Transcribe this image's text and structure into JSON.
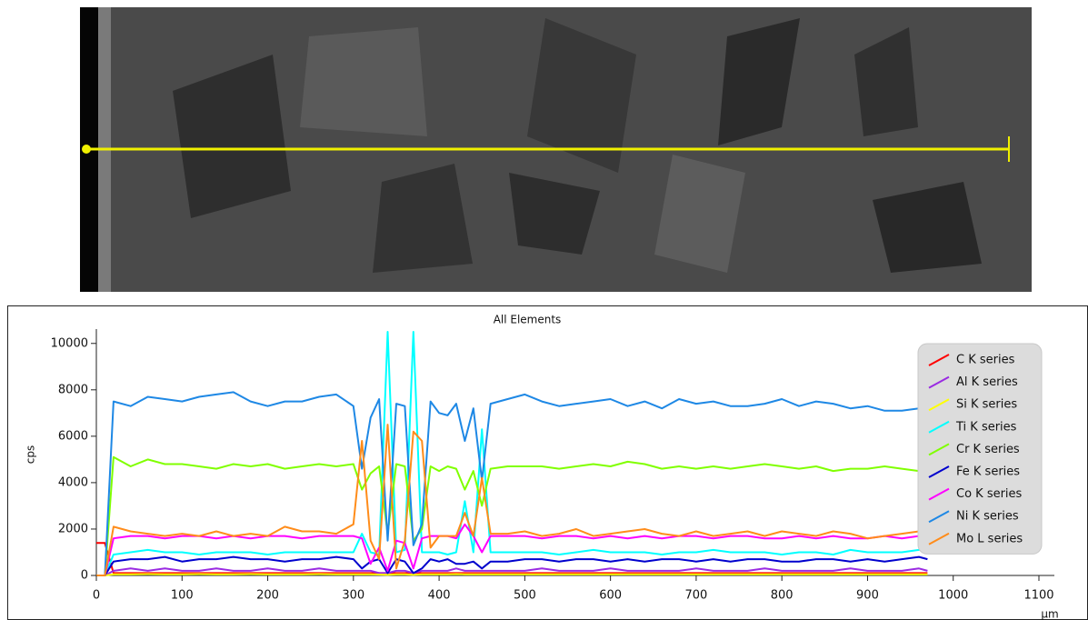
{
  "chart_data": {
    "type": "line",
    "title": "All Elements",
    "x_label": "µm",
    "y_label": "cps",
    "x": [
      0,
      10,
      20,
      40,
      60,
      80,
      100,
      120,
      140,
      160,
      180,
      200,
      220,
      240,
      260,
      280,
      300,
      310,
      320,
      330,
      340,
      350,
      360,
      370,
      380,
      390,
      400,
      410,
      420,
      430,
      440,
      450,
      460,
      480,
      500,
      520,
      540,
      560,
      580,
      600,
      620,
      640,
      660,
      680,
      700,
      720,
      740,
      760,
      780,
      800,
      820,
      840,
      860,
      880,
      900,
      920,
      940,
      960,
      970
    ],
    "xlim": [
      0,
      1100
    ],
    "xticks": [
      0,
      100,
      200,
      300,
      400,
      500,
      600,
      700,
      800,
      900,
      1000,
      1100
    ],
    "ylim": [
      0,
      10500
    ],
    "yticks": [
      0,
      2000,
      4000,
      6000,
      8000,
      10000
    ],
    "grid": false,
    "legend": "upper right",
    "series": [
      {
        "name": "C K series",
        "color": "#ff0000",
        "values": [
          1400,
          1400,
          100,
          100,
          100,
          100,
          100,
          100,
          100,
          100,
          100,
          100,
          100,
          100,
          100,
          100,
          100,
          100,
          100,
          100,
          100,
          100,
          100,
          100,
          100,
          100,
          100,
          100,
          100,
          100,
          100,
          100,
          100,
          100,
          100,
          100,
          100,
          100,
          100,
          100,
          100,
          100,
          100,
          100,
          100,
          100,
          100,
          100,
          100,
          100,
          100,
          100,
          100,
          100,
          100,
          100,
          100,
          100,
          100
        ]
      },
      {
        "name": "Al K series",
        "color": "#9a2be2",
        "values": [
          0,
          0,
          200,
          300,
          200,
          300,
          200,
          200,
          300,
          200,
          200,
          300,
          200,
          200,
          300,
          200,
          200,
          200,
          200,
          100,
          100,
          200,
          200,
          100,
          200,
          200,
          200,
          200,
          300,
          200,
          200,
          200,
          200,
          200,
          200,
          300,
          200,
          200,
          200,
          300,
          200,
          200,
          200,
          200,
          300,
          200,
          200,
          200,
          300,
          200,
          200,
          200,
          200,
          300,
          200,
          200,
          200,
          300,
          200
        ]
      },
      {
        "name": "Si K series",
        "color": "#ffff00",
        "values": [
          0,
          0,
          50,
          50,
          60,
          50,
          50,
          60,
          50,
          50,
          60,
          50,
          50,
          50,
          60,
          50,
          50,
          50,
          50,
          40,
          30,
          50,
          50,
          30,
          50,
          50,
          50,
          50,
          60,
          50,
          50,
          50,
          50,
          50,
          50,
          50,
          50,
          50,
          50,
          50,
          50,
          50,
          50,
          50,
          50,
          50,
          50,
          50,
          50,
          50,
          50,
          50,
          50,
          50,
          50,
          50,
          50,
          50,
          50
        ]
      },
      {
        "name": "Ti K series",
        "color": "#00ffff",
        "values": [
          0,
          0,
          900,
          1000,
          1100,
          1000,
          1000,
          900,
          1000,
          1000,
          1000,
          900,
          1000,
          1000,
          1000,
          1000,
          1000,
          1800,
          1000,
          900,
          10500,
          1000,
          1100,
          10500,
          1000,
          1000,
          1000,
          900,
          1000,
          3200,
          1000,
          6300,
          1000,
          1000,
          1000,
          1000,
          900,
          1000,
          1100,
          1000,
          1000,
          1000,
          900,
          1000,
          1000,
          1100,
          1000,
          1000,
          1000,
          900,
          1000,
          1000,
          900,
          1100,
          1000,
          1000,
          1000,
          1100,
          1100
        ]
      },
      {
        "name": "Cr K series",
        "color": "#80ff00",
        "values": [
          0,
          0,
          5100,
          4700,
          5000,
          4800,
          4800,
          4700,
          4600,
          4800,
          4700,
          4800,
          4600,
          4700,
          4800,
          4700,
          4800,
          3700,
          4400,
          4700,
          1800,
          4800,
          4700,
          1500,
          2000,
          4700,
          4500,
          4700,
          4600,
          3700,
          4500,
          3000,
          4600,
          4700,
          4700,
          4700,
          4600,
          4700,
          4800,
          4700,
          4900,
          4800,
          4600,
          4700,
          4600,
          4700,
          4600,
          4700,
          4800,
          4700,
          4600,
          4700,
          4500,
          4600,
          4600,
          4700,
          4600,
          4500,
          4500
        ]
      },
      {
        "name": "Fe K series",
        "color": "#0000cd",
        "values": [
          0,
          0,
          600,
          700,
          700,
          800,
          600,
          700,
          700,
          800,
          700,
          700,
          600,
          700,
          700,
          800,
          700,
          300,
          600,
          700,
          100,
          700,
          600,
          100,
          300,
          700,
          600,
          700,
          500,
          500,
          600,
          300,
          600,
          600,
          700,
          700,
          600,
          700,
          700,
          600,
          700,
          600,
          700,
          700,
          600,
          700,
          600,
          700,
          700,
          600,
          600,
          700,
          700,
          600,
          700,
          600,
          700,
          800,
          700
        ]
      },
      {
        "name": "Co K series",
        "color": "#ff00ff",
        "values": [
          0,
          0,
          1600,
          1700,
          1700,
          1600,
          1700,
          1700,
          1600,
          1700,
          1600,
          1700,
          1700,
          1600,
          1700,
          1700,
          1700,
          1600,
          500,
          1200,
          200,
          1500,
          1400,
          300,
          1600,
          1700,
          1700,
          1700,
          1600,
          2200,
          1700,
          1000,
          1700,
          1700,
          1700,
          1600,
          1700,
          1700,
          1600,
          1700,
          1600,
          1700,
          1600,
          1700,
          1700,
          1600,
          1700,
          1700,
          1600,
          1600,
          1700,
          1600,
          1700,
          1600,
          1600,
          1700,
          1600,
          1700,
          1600
        ]
      },
      {
        "name": "Ni K series",
        "color": "#1e88e5",
        "values": [
          0,
          0,
          7500,
          7300,
          7700,
          7600,
          7500,
          7700,
          7800,
          7900,
          7500,
          7300,
          7500,
          7500,
          7700,
          7800,
          7300,
          4600,
          6800,
          7600,
          1500,
          7400,
          7300,
          1300,
          2200,
          7500,
          7000,
          6900,
          7400,
          5800,
          7200,
          4100,
          7400,
          7600,
          7800,
          7500,
          7300,
          7400,
          7500,
          7600,
          7300,
          7500,
          7200,
          7600,
          7400,
          7500,
          7300,
          7300,
          7400,
          7600,
          7300,
          7500,
          7400,
          7200,
          7300,
          7100,
          7100,
          7200,
          7000
        ]
      },
      {
        "name": "Mo L series",
        "color": "#ff8c1a",
        "values": [
          0,
          0,
          2100,
          1900,
          1800,
          1700,
          1800,
          1700,
          1900,
          1700,
          1800,
          1700,
          2100,
          1900,
          1900,
          1800,
          2200,
          5800,
          1500,
          700,
          6500,
          300,
          1500,
          6200,
          5800,
          1200,
          1700,
          1700,
          1700,
          2700,
          1700,
          4200,
          1800,
          1800,
          1900,
          1700,
          1800,
          2000,
          1700,
          1800,
          1900,
          2000,
          1800,
          1700,
          1900,
          1700,
          1800,
          1900,
          1700,
          1900,
          1800,
          1700,
          1900,
          1800,
          1600,
          1700,
          1800,
          1900,
          1600
        ]
      }
    ]
  }
}
